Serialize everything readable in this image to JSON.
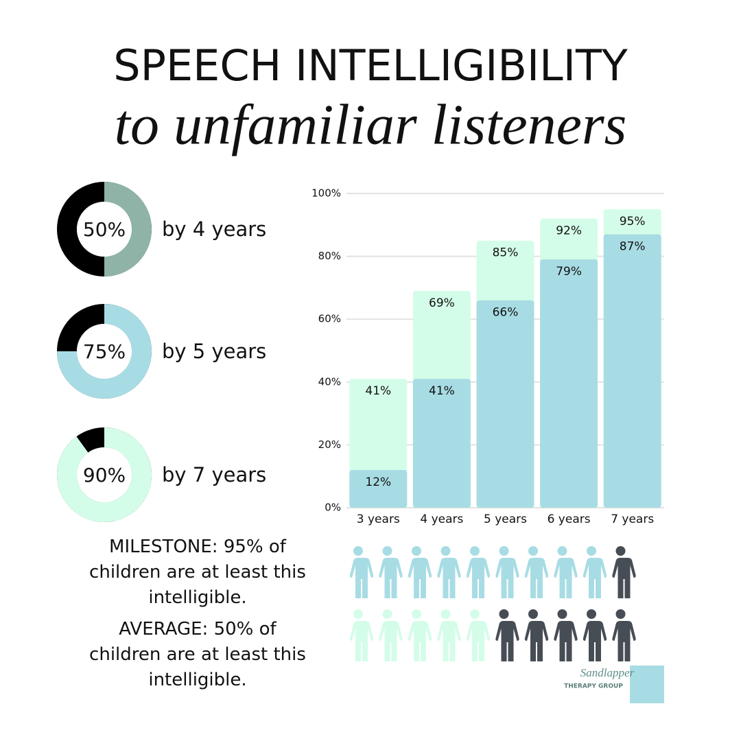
{
  "title": "SPEECH INTELLIGIBILITY",
  "subtitle": "to unfamiliar listeners",
  "chart_data": [
    {
      "type": "donut",
      "values": [
        50
      ],
      "value_labels": [
        "50%"
      ],
      "caption": "by 4 years",
      "color": "#8fb3a7",
      "track_color": "#000000"
    },
    {
      "type": "donut",
      "values": [
        75
      ],
      "value_labels": [
        "75%"
      ],
      "caption": "by 5 years",
      "color": "#a8dce4",
      "track_color": "#000000"
    },
    {
      "type": "donut",
      "values": [
        90
      ],
      "value_labels": [
        "90%"
      ],
      "caption": "by 7 years",
      "color": "#d4fde9",
      "track_color": "#000000"
    },
    {
      "type": "bar",
      "barmode": "overlay",
      "categories": [
        "3 years",
        "4 years",
        "5 years",
        "6 years",
        "7 years"
      ],
      "series": [
        {
          "color": "#d4fde9",
          "values": [
            41,
            69,
            85,
            92,
            95
          ],
          "value_labels": [
            "41%",
            "69%",
            "85%",
            "92%",
            "95%"
          ]
        },
        {
          "color": "#a8dce4",
          "values": [
            12,
            41,
            66,
            79,
            87
          ],
          "value_labels": [
            "12%",
            "41%",
            "66%",
            "79%",
            "87%"
          ]
        }
      ],
      "ylim": [
        0,
        100
      ],
      "yticks": [
        {
          "value": 0,
          "label": "0%"
        },
        {
          "value": 20,
          "label": "20%"
        },
        {
          "value": 40,
          "label": "40%"
        },
        {
          "value": 60,
          "label": "60%"
        },
        {
          "value": 80,
          "label": "80%"
        },
        {
          "value": 100,
          "label": "100%"
        }
      ],
      "grid": true
    },
    {
      "type": "pictogram",
      "total": 10,
      "rest_color": "#474d55",
      "rows": [
        {
          "count": 9,
          "color": "#a8dce4"
        },
        {
          "count": 5,
          "color": "#d4fde9"
        }
      ]
    }
  ],
  "notes": [
    "MILESTONE: 95% of children are at least this intelligible.",
    "AVERAGE: 50% of children are at least this intelligible."
  ],
  "logo": {
    "name": "Sandlapper",
    "tagline": "THERAPY GROUP"
  }
}
